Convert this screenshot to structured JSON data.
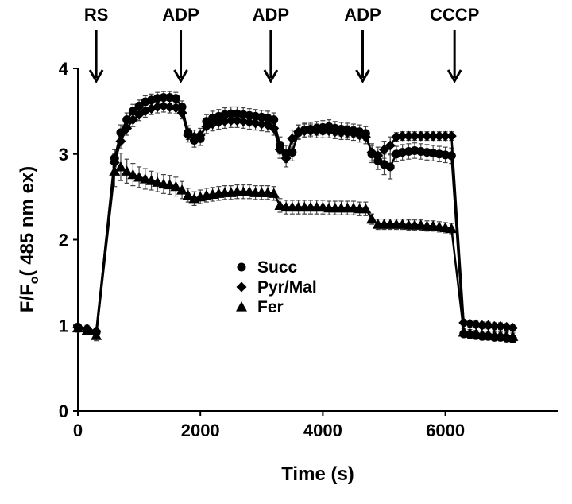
{
  "chart_data": {
    "type": "line",
    "xlabel": "Time (s)",
    "ylabel_main": "F/F",
    "ylabel_sub": "o",
    "ylabel_rest": "( 485 nm ex)",
    "xlim": [
      0,
      7400
    ],
    "ylim": [
      0,
      4
    ],
    "xticks": [
      0,
      2000,
      4000,
      6000
    ],
    "yticks": [
      0,
      1,
      2,
      3,
      4
    ],
    "grid": false,
    "legend_position": "center",
    "annotations": [
      {
        "label": "RS",
        "x": 300
      },
      {
        "label": "ADP",
        "x": 1680
      },
      {
        "label": "ADP",
        "x": 3150
      },
      {
        "label": "ADP",
        "x": 4650
      },
      {
        "label": "CCCP",
        "x": 6150
      }
    ],
    "series": [
      {
        "name": "Succ",
        "marker": "circle",
        "x": [
          0,
          150,
          300,
          600,
          700,
          800,
          900,
          1000,
          1100,
          1200,
          1300,
          1400,
          1500,
          1600,
          1700,
          1800,
          1900,
          2000,
          2100,
          2200,
          2300,
          2400,
          2500,
          2600,
          2700,
          2800,
          2900,
          3000,
          3100,
          3200,
          3300,
          3400,
          3500,
          3600,
          3700,
          3800,
          3900,
          4000,
          4100,
          4200,
          4300,
          4400,
          4500,
          4600,
          4700,
          4800,
          4900,
          5000,
          5100,
          5200,
          5300,
          5400,
          5500,
          5600,
          5700,
          5800,
          5900,
          6000,
          6100,
          6300,
          6400,
          6500,
          6600,
          6700,
          6800,
          6900,
          7000,
          7100
        ],
        "y": [
          0.98,
          0.95,
          0.92,
          2.95,
          3.25,
          3.4,
          3.5,
          3.56,
          3.61,
          3.63,
          3.65,
          3.66,
          3.66,
          3.65,
          3.55,
          3.25,
          3.16,
          3.18,
          3.38,
          3.42,
          3.44,
          3.46,
          3.47,
          3.47,
          3.46,
          3.45,
          3.44,
          3.43,
          3.42,
          3.4,
          3.1,
          3.0,
          3.02,
          3.25,
          3.28,
          3.29,
          3.3,
          3.31,
          3.32,
          3.3,
          3.29,
          3.28,
          3.27,
          3.26,
          3.24,
          3.0,
          2.92,
          2.88,
          2.85,
          3.0,
          3.02,
          3.03,
          3.04,
          3.03,
          3.02,
          3.01,
          3.0,
          2.99,
          2.98,
          0.9,
          0.89,
          0.88,
          0.87,
          0.87,
          0.86,
          0.86,
          0.85,
          0.84
        ],
        "err": [
          0.04,
          0.04,
          0.04,
          0.1,
          0.09,
          0.08,
          0.08,
          0.07,
          0.07,
          0.07,
          0.07,
          0.07,
          0.07,
          0.07,
          0.07,
          0.08,
          0.08,
          0.08,
          0.08,
          0.08,
          0.08,
          0.08,
          0.08,
          0.08,
          0.08,
          0.08,
          0.08,
          0.08,
          0.08,
          0.08,
          0.1,
          0.1,
          0.1,
          0.08,
          0.08,
          0.08,
          0.08,
          0.08,
          0.08,
          0.08,
          0.08,
          0.08,
          0.08,
          0.08,
          0.08,
          0.1,
          0.1,
          0.12,
          0.14,
          0.09,
          0.09,
          0.09,
          0.09,
          0.09,
          0.09,
          0.09,
          0.09,
          0.09,
          0.09,
          0.04,
          0.04,
          0.04,
          0.04,
          0.04,
          0.04,
          0.04,
          0.04,
          0.04
        ]
      },
      {
        "name": "Pyr/Mal",
        "marker": "diamond",
        "x": [
          0,
          150,
          300,
          600,
          700,
          800,
          900,
          1000,
          1100,
          1200,
          1300,
          1400,
          1500,
          1600,
          1700,
          1800,
          1900,
          2000,
          2100,
          2200,
          2300,
          2400,
          2500,
          2600,
          2700,
          2800,
          2900,
          3000,
          3100,
          3200,
          3300,
          3400,
          3500,
          3600,
          3700,
          3800,
          3900,
          4000,
          4100,
          4200,
          4300,
          4400,
          4500,
          4600,
          4700,
          4800,
          4900,
          5000,
          5100,
          5200,
          5300,
          5400,
          5500,
          5600,
          5700,
          5800,
          5900,
          6000,
          6100,
          6300,
          6400,
          6500,
          6600,
          6700,
          6800,
          6900,
          7000,
          7100
        ],
        "y": [
          0.98,
          0.96,
          0.93,
          2.9,
          3.15,
          3.3,
          3.4,
          3.46,
          3.5,
          3.53,
          3.55,
          3.56,
          3.55,
          3.54,
          3.48,
          3.22,
          3.2,
          3.22,
          3.32,
          3.35,
          3.37,
          3.38,
          3.39,
          3.39,
          3.38,
          3.37,
          3.36,
          3.35,
          3.34,
          3.3,
          3.05,
          2.95,
          3.18,
          3.26,
          3.27,
          3.27,
          3.27,
          3.27,
          3.27,
          3.26,
          3.25,
          3.25,
          3.24,
          3.22,
          3.2,
          3.02,
          2.98,
          3.05,
          3.1,
          3.2,
          3.21,
          3.21,
          3.21,
          3.21,
          3.21,
          3.21,
          3.21,
          3.21,
          3.21,
          1.03,
          1.02,
          1.01,
          1.0,
          1.0,
          0.99,
          0.99,
          0.98,
          0.97
        ],
        "err": [
          0.04,
          0.04,
          0.04,
          0.1,
          0.09,
          0.08,
          0.08,
          0.07,
          0.07,
          0.07,
          0.07,
          0.07,
          0.07,
          0.07,
          0.07,
          0.08,
          0.08,
          0.08,
          0.08,
          0.08,
          0.08,
          0.08,
          0.08,
          0.08,
          0.08,
          0.08,
          0.08,
          0.08,
          0.08,
          0.08,
          0.1,
          0.1,
          0.1,
          0.08,
          0.08,
          0.08,
          0.08,
          0.08,
          0.08,
          0.08,
          0.08,
          0.08,
          0.08,
          0.08,
          0.08,
          0.1,
          0.1,
          0.1,
          0.1,
          0.05,
          0.05,
          0.05,
          0.05,
          0.05,
          0.05,
          0.05,
          0.05,
          0.05,
          0.05,
          0.04,
          0.04,
          0.04,
          0.04,
          0.04,
          0.04,
          0.04,
          0.04,
          0.04
        ]
      },
      {
        "name": "Fer",
        "marker": "triangle",
        "x": [
          0,
          150,
          300,
          600,
          700,
          800,
          900,
          1000,
          1100,
          1200,
          1300,
          1400,
          1500,
          1600,
          1700,
          1800,
          1900,
          2000,
          2100,
          2200,
          2300,
          2400,
          2500,
          2600,
          2700,
          2800,
          2900,
          3000,
          3100,
          3200,
          3300,
          3400,
          3500,
          3600,
          3700,
          3800,
          3900,
          4000,
          4100,
          4200,
          4300,
          4400,
          4500,
          4600,
          4700,
          4800,
          4900,
          5000,
          5100,
          5200,
          5300,
          5400,
          5500,
          5600,
          5700,
          5800,
          5900,
          6000,
          6100,
          6300,
          6400,
          6500,
          6600,
          6700,
          6800,
          6900,
          7000,
          7100
        ],
        "y": [
          0.97,
          0.94,
          0.88,
          2.8,
          2.85,
          2.8,
          2.76,
          2.73,
          2.71,
          2.69,
          2.67,
          2.65,
          2.64,
          2.62,
          2.58,
          2.52,
          2.48,
          2.5,
          2.52,
          2.53,
          2.54,
          2.55,
          2.55,
          2.56,
          2.56,
          2.56,
          2.55,
          2.55,
          2.55,
          2.54,
          2.4,
          2.38,
          2.38,
          2.38,
          2.38,
          2.38,
          2.38,
          2.38,
          2.37,
          2.37,
          2.37,
          2.37,
          2.37,
          2.36,
          2.36,
          2.24,
          2.18,
          2.18,
          2.18,
          2.18,
          2.18,
          2.17,
          2.17,
          2.17,
          2.16,
          2.16,
          2.15,
          2.14,
          2.13,
          0.92,
          0.91,
          0.9,
          0.89,
          0.89,
          0.88,
          0.88,
          0.88,
          0.87
        ],
        "err": [
          0.05,
          0.05,
          0.06,
          0.18,
          0.16,
          0.14,
          0.13,
          0.12,
          0.12,
          0.11,
          0.11,
          0.11,
          0.11,
          0.11,
          0.1,
          0.08,
          0.08,
          0.08,
          0.08,
          0.08,
          0.08,
          0.08,
          0.08,
          0.08,
          0.08,
          0.08,
          0.08,
          0.08,
          0.08,
          0.08,
          0.08,
          0.08,
          0.08,
          0.08,
          0.08,
          0.08,
          0.08,
          0.08,
          0.08,
          0.08,
          0.08,
          0.08,
          0.08,
          0.08,
          0.08,
          0.06,
          0.06,
          0.06,
          0.06,
          0.06,
          0.06,
          0.06,
          0.06,
          0.06,
          0.06,
          0.06,
          0.06,
          0.06,
          0.06,
          0.04,
          0.04,
          0.04,
          0.04,
          0.04,
          0.04,
          0.04,
          0.04,
          0.04
        ]
      }
    ]
  }
}
